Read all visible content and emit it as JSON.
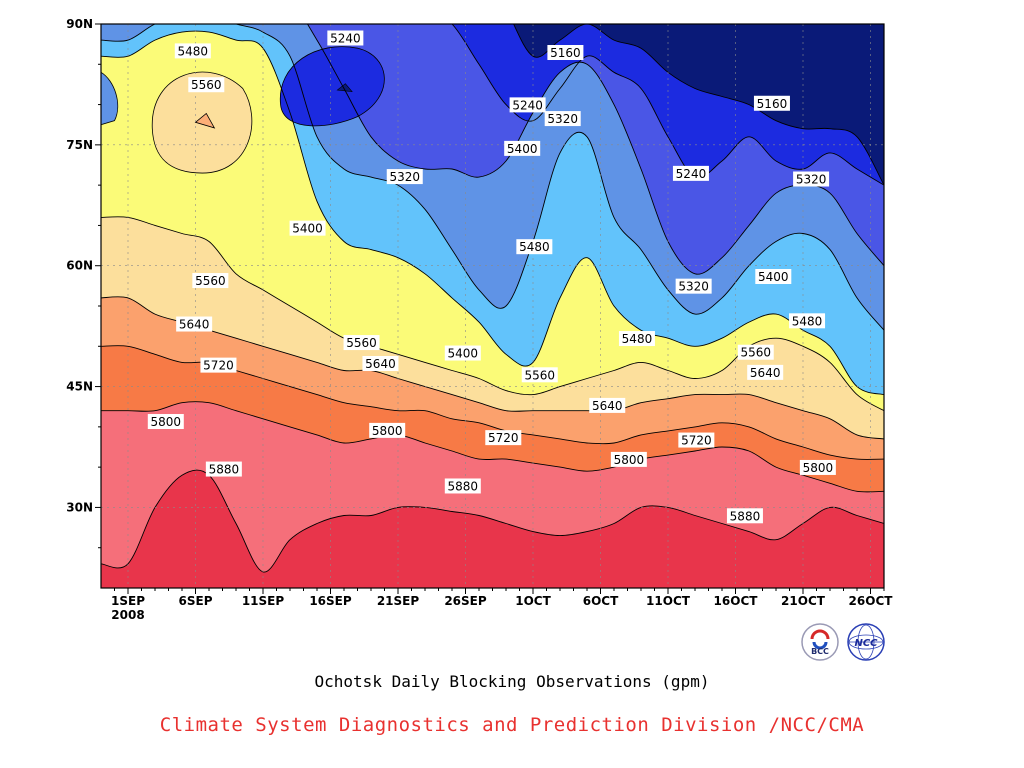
{
  "chart_data": {
    "type": "contour",
    "title": "Ochotsk Daily Blocking Observations (gpm)",
    "credit": "Climate System Diagnostics and Prediction Division /NCC/CMA",
    "x_ticks": [
      "1SEP",
      "6SEP",
      "11SEP",
      "16SEP",
      "21SEP",
      "26SEP",
      "1OCT",
      "6OCT",
      "11OCT",
      "16OCT",
      "21OCT",
      "26OCT"
    ],
    "x_year": "2008",
    "x_range": [
      "30 Aug 2008",
      "27 Oct 2008"
    ],
    "y_ticks": [
      "90N",
      "75N",
      "60N",
      "45N",
      "30N"
    ],
    "y_range": [
      20,
      90
    ],
    "contour_interval": 80,
    "contour_levels": [
      5160,
      5240,
      5320,
      5400,
      5480,
      5560,
      5640,
      5720,
      5800,
      5880
    ],
    "grid": true,
    "colors": {
      "lt5160": "#0a1a78",
      "b5160": "#1c2be0",
      "b5240": "#4a56e6",
      "b5320": "#5f93e6",
      "b5400": "#62c3fb",
      "b5480": "#fbfb78",
      "b5560": "#fcdf9c",
      "b5640": "#fba16d",
      "b5720": "#f77a46",
      "b5800": "#f56f7a",
      "gt5880": "#e8354b",
      "peak_high": "#fcae77"
    },
    "contour_labels": [
      {
        "value": "5480",
        "day": 4.8,
        "lat": 86.6
      },
      {
        "value": "5560",
        "day": 5.8,
        "lat": 82.4
      },
      {
        "value": "5240",
        "day": 16.1,
        "lat": 88.2
      },
      {
        "value": "5160",
        "day": 32.4,
        "lat": 86.4
      },
      {
        "value": "5240",
        "day": 29.6,
        "lat": 79.9
      },
      {
        "value": "5320",
        "day": 32.2,
        "lat": 78.2
      },
      {
        "value": "5160",
        "day": 47.7,
        "lat": 80.1
      },
      {
        "value": "5400",
        "day": 29.2,
        "lat": 74.5
      },
      {
        "value": "5320",
        "day": 20.5,
        "lat": 71.0
      },
      {
        "value": "5240",
        "day": 41.7,
        "lat": 71.4
      },
      {
        "value": "5320",
        "day": 50.6,
        "lat": 70.7
      },
      {
        "value": "5400",
        "day": 13.3,
        "lat": 64.6
      },
      {
        "value": "5480",
        "day": 30.1,
        "lat": 62.3
      },
      {
        "value": "5560",
        "day": 6.1,
        "lat": 58.1
      },
      {
        "value": "5320",
        "day": 41.9,
        "lat": 57.4
      },
      {
        "value": "5400",
        "day": 47.8,
        "lat": 58.6
      },
      {
        "value": "5640",
        "day": 4.9,
        "lat": 52.7
      },
      {
        "value": "5480",
        "day": 37.7,
        "lat": 50.9
      },
      {
        "value": "5480",
        "day": 50.3,
        "lat": 53.1
      },
      {
        "value": "5560",
        "day": 17.3,
        "lat": 50.4
      },
      {
        "value": "5400",
        "day": 24.8,
        "lat": 49.1
      },
      {
        "value": "5560",
        "day": 46.5,
        "lat": 49.2
      },
      {
        "value": "5720",
        "day": 6.7,
        "lat": 47.6
      },
      {
        "value": "5640",
        "day": 18.7,
        "lat": 47.8
      },
      {
        "value": "5560",
        "day": 30.5,
        "lat": 46.4
      },
      {
        "value": "5640",
        "day": 47.2,
        "lat": 46.7
      },
      {
        "value": "5640",
        "day": 35.5,
        "lat": 42.6
      },
      {
        "value": "5800",
        "day": 2.8,
        "lat": 40.6
      },
      {
        "value": "5800",
        "day": 19.2,
        "lat": 39.5
      },
      {
        "value": "5720",
        "day": 27.8,
        "lat": 38.6
      },
      {
        "value": "5720",
        "day": 42.1,
        "lat": 38.3
      },
      {
        "value": "5800",
        "day": 37.1,
        "lat": 35.9
      },
      {
        "value": "5800",
        "day": 51.1,
        "lat": 34.9
      },
      {
        "value": "5880",
        "day": 7.1,
        "lat": 34.7
      },
      {
        "value": "5880",
        "day": 24.8,
        "lat": 32.6
      },
      {
        "value": "5880",
        "day": 45.7,
        "lat": 28.9
      }
    ],
    "logos": [
      "BCC",
      "NCC"
    ]
  }
}
